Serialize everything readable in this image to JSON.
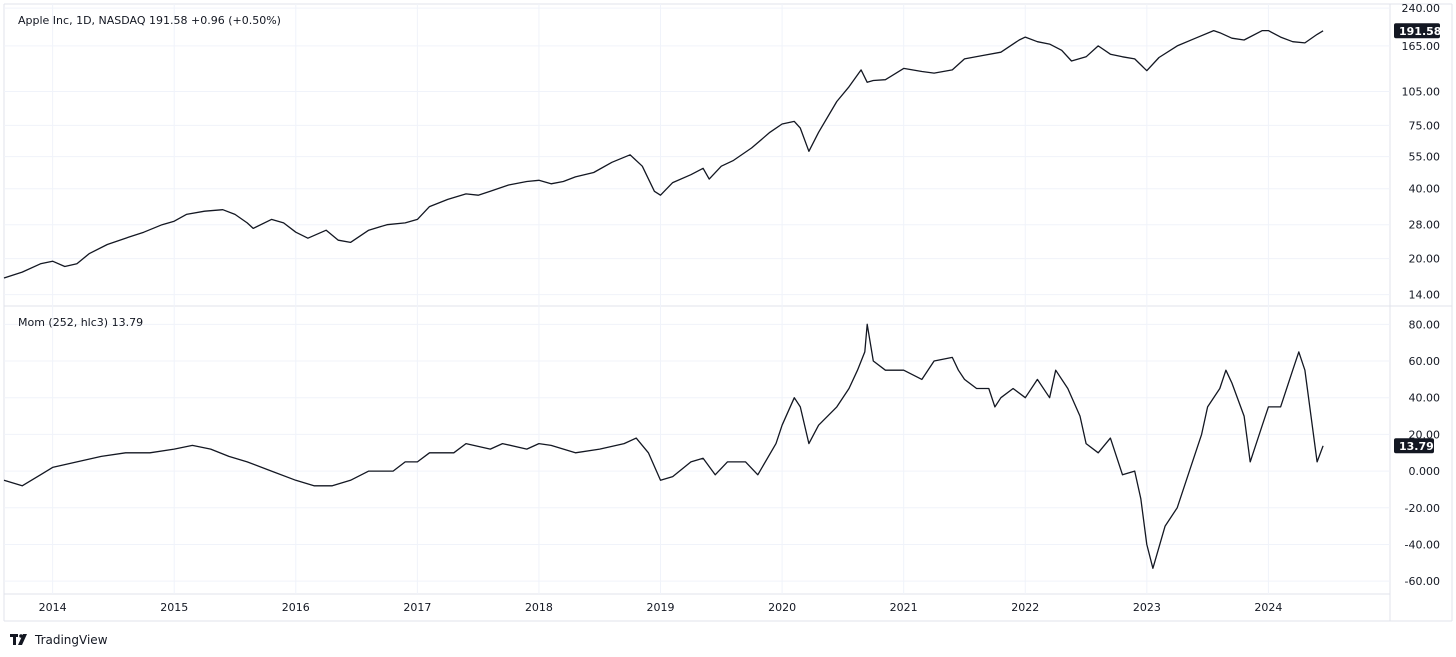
{
  "colors": {
    "line": "#131722",
    "grid": "#f0f3fa",
    "border": "#e0e3eb",
    "badge_bg": "#131722",
    "badge_fg": "#ffffff"
  },
  "price_pane": {
    "legend": "Apple Inc, 1D, NASDAQ  191.58  +0.96 (+0.50%)",
    "last_value_label": "191.58"
  },
  "momentum_pane": {
    "legend": "Mom (252, hlc3)  13.79",
    "last_value_label": "13.79"
  },
  "footer": {
    "brand": "TradingView",
    "brand_icon": "tradingview-logo-icon"
  },
  "chart_data": [
    {
      "type": "line",
      "scale": "log",
      "ylim": [
        12.5,
        250
      ],
      "xlim": [
        2013.6,
        2025.0
      ],
      "yticks": [
        "240.00",
        "165.00",
        "105.00",
        "75.00",
        "55.00",
        "40.00",
        "28.00",
        "20.00",
        "14.00"
      ],
      "xticks": [
        "2014",
        "2015",
        "2016",
        "2017",
        "2018",
        "2019",
        "2020",
        "2021",
        "2022",
        "2023",
        "2024"
      ],
      "series": [
        {
          "x": [
            2013.6,
            2013.75,
            2013.9,
            2014.0,
            2014.1,
            2014.2,
            2014.3,
            2014.45,
            2014.6,
            2014.75,
            2014.9,
            2015.0,
            2015.1,
            2015.25,
            2015.4,
            2015.5,
            2015.6,
            2015.65,
            2015.8,
            2015.9,
            2016.0,
            2016.1,
            2016.25,
            2016.35,
            2016.45,
            2016.6,
            2016.75,
            2016.9,
            2017.0,
            2017.1,
            2017.25,
            2017.4,
            2017.5,
            2017.6,
            2017.75,
            2017.9,
            2018.0,
            2018.1,
            2018.2,
            2018.3,
            2018.45,
            2018.6,
            2018.75,
            2018.85,
            2018.95,
            2019.0,
            2019.1,
            2019.25,
            2019.35,
            2019.4,
            2019.5,
            2019.6,
            2019.75,
            2019.9,
            2020.0,
            2020.1,
            2020.15,
            2020.22,
            2020.3,
            2020.45,
            2020.55,
            2020.65,
            2020.7,
            2020.75,
            2020.85,
            2021.0,
            2021.15,
            2021.25,
            2021.4,
            2021.5,
            2021.65,
            2021.8,
            2021.95,
            2022.0,
            2022.1,
            2022.2,
            2022.3,
            2022.38,
            2022.5,
            2022.6,
            2022.7,
            2022.8,
            2022.9,
            2023.0,
            2023.1,
            2023.25,
            2023.4,
            2023.55,
            2023.6,
            2023.7,
            2023.8,
            2023.95,
            2024.0,
            2024.1,
            2024.2,
            2024.3,
            2024.4,
            2024.45
          ],
          "values": [
            16.5,
            17.5,
            19.0,
            19.5,
            18.5,
            19.0,
            21.0,
            23.0,
            24.5,
            26.0,
            28.0,
            29.0,
            31.0,
            32.0,
            32.5,
            31.0,
            28.5,
            27.0,
            29.5,
            28.5,
            26.0,
            24.5,
            26.5,
            24.0,
            23.5,
            26.5,
            28.0,
            28.5,
            29.5,
            33.5,
            36.0,
            38.0,
            37.5,
            39.0,
            41.5,
            43.0,
            43.5,
            42.0,
            43.0,
            45.0,
            47.0,
            52.0,
            56.0,
            50.0,
            39.0,
            37.5,
            42.5,
            46.0,
            49.0,
            44.0,
            50.0,
            53.0,
            60.0,
            70.0,
            76.0,
            78.0,
            73.0,
            58.0,
            70.0,
            95.0,
            110.0,
            130.0,
            115.0,
            117.0,
            118.0,
            132.0,
            128.0,
            126.0,
            130.0,
            145.0,
            150.0,
            155.0,
            175.0,
            180.0,
            172.0,
            168.0,
            158.0,
            142.0,
            148.0,
            165.0,
            152.0,
            148.0,
            145.0,
            129.0,
            147.0,
            165.0,
            178.0,
            192.0,
            188.0,
            178.0,
            175.0,
            192.0,
            192.0,
            180.0,
            172.0,
            170.0,
            185.0,
            191.58
          ]
        }
      ]
    },
    {
      "type": "line",
      "ylim": [
        -67,
        90
      ],
      "xlim": [
        2013.6,
        2025.0
      ],
      "yticks": [
        "80.00",
        "60.00",
        "40.00",
        "20.00",
        "0.000",
        "-20.00",
        "-40.00",
        "-60.00"
      ],
      "xticks": [
        "2014",
        "2015",
        "2016",
        "2017",
        "2018",
        "2019",
        "2020",
        "2021",
        "2022",
        "2023",
        "2024"
      ],
      "series": [
        {
          "x": [
            2013.6,
            2013.75,
            2013.9,
            2014.0,
            2014.2,
            2014.4,
            2014.6,
            2014.8,
            2015.0,
            2015.15,
            2015.3,
            2015.45,
            2015.6,
            2015.8,
            2016.0,
            2016.15,
            2016.3,
            2016.45,
            2016.6,
            2016.8,
            2016.9,
            2017.0,
            2017.1,
            2017.3,
            2017.4,
            2017.6,
            2017.7,
            2017.9,
            2018.0,
            2018.1,
            2018.3,
            2018.5,
            2018.7,
            2018.8,
            2018.9,
            2019.0,
            2019.1,
            2019.25,
            2019.35,
            2019.45,
            2019.55,
            2019.7,
            2019.8,
            2019.95,
            2020.0,
            2020.1,
            2020.15,
            2020.22,
            2020.3,
            2020.45,
            2020.55,
            2020.62,
            2020.68,
            2020.7,
            2020.75,
            2020.85,
            2021.0,
            2021.15,
            2021.25,
            2021.4,
            2021.45,
            2021.5,
            2021.6,
            2021.7,
            2021.75,
            2021.8,
            2021.9,
            2022.0,
            2022.1,
            2022.2,
            2022.25,
            2022.35,
            2022.45,
            2022.5,
            2022.6,
            2022.7,
            2022.8,
            2022.9,
            2022.95,
            2023.0,
            2023.05,
            2023.15,
            2023.25,
            2023.35,
            2023.45,
            2023.5,
            2023.6,
            2023.65,
            2023.7,
            2023.8,
            2023.85,
            2023.95,
            2024.0,
            2024.1,
            2024.2,
            2024.25,
            2024.3,
            2024.35,
            2024.4,
            2024.45
          ],
          "values": [
            -5,
            -8,
            -2,
            2,
            5,
            8,
            10,
            10,
            12,
            14,
            12,
            8,
            5,
            0,
            -5,
            -8,
            -8,
            -5,
            0,
            0,
            5,
            5,
            10,
            10,
            15,
            12,
            15,
            12,
            15,
            14,
            10,
            12,
            15,
            18,
            10,
            -5,
            -3,
            5,
            7,
            -2,
            5,
            5,
            -2,
            15,
            25,
            40,
            35,
            15,
            25,
            35,
            45,
            55,
            65,
            80,
            60,
            55,
            55,
            50,
            60,
            62,
            55,
            50,
            45,
            45,
            35,
            40,
            45,
            40,
            50,
            40,
            55,
            45,
            30,
            15,
            10,
            18,
            -2,
            0,
            -15,
            -40,
            -53,
            -30,
            -20,
            0,
            20,
            35,
            45,
            55,
            48,
            30,
            5,
            25,
            35,
            35,
            55,
            65,
            55,
            30,
            5,
            13.79
          ]
        }
      ]
    }
  ]
}
